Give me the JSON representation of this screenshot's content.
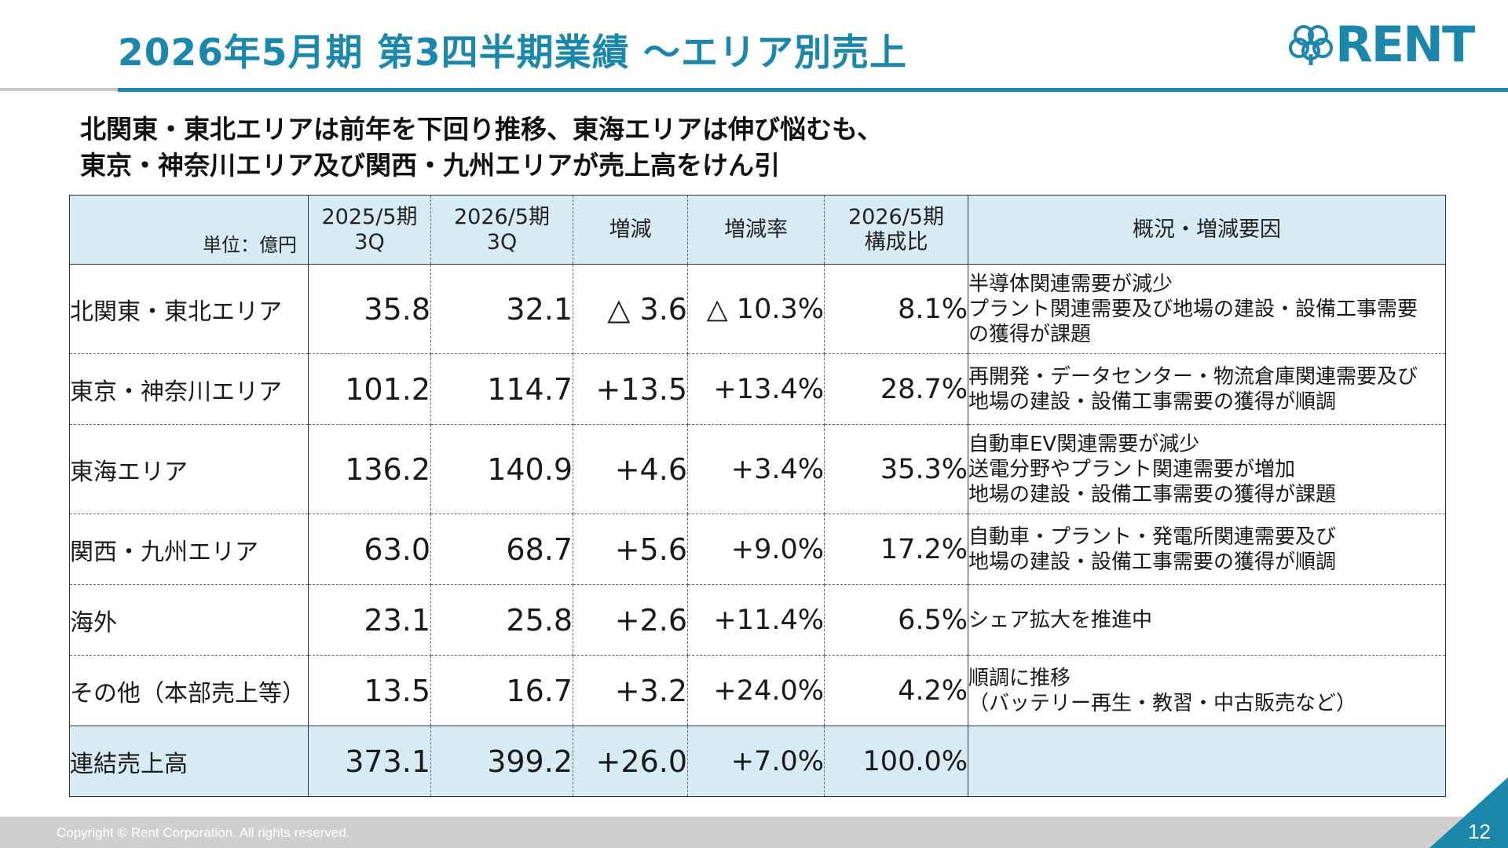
{
  "title": "2026年5月期 第3四半期業績 ～エリア別売上",
  "logo_text": "RENT",
  "headline": {
    "line1": "北関東・東北エリアは前年を下回り推移、東海エリアは伸び悩むも、",
    "line2": "東京・神奈川エリア及び関西・九州エリアが売上高をけん引"
  },
  "table": {
    "headers": {
      "unit": "単位：億円",
      "prev_1": "2025/5期",
      "prev_2": "3Q",
      "curr_1": "2026/5期",
      "curr_2": "3Q",
      "change": "増減",
      "change_rate": "増減率",
      "share_1": "2026/5期",
      "share_2": "構成比",
      "notes": "概況・増減要因"
    },
    "rows": [
      {
        "area": "北関東・東北エリア",
        "prev": "35.8",
        "curr": "32.1",
        "change": "△ 3.6",
        "rate": "△ 10.3%",
        "share": "8.1%",
        "notes": [
          "半導体関連需要が減少",
          "プラント関連需要及び地場の建設・設備工事需要",
          "の獲得が課題"
        ]
      },
      {
        "area": "東京・神奈川エリア",
        "prev": "101.2",
        "curr": "114.7",
        "change": "+13.5",
        "rate": "+13.4%",
        "share": "28.7%",
        "notes": [
          "再開発・データセンター・物流倉庫関連需要及び",
          "地場の建設・設備工事需要の獲得が順調"
        ]
      },
      {
        "area": "東海エリア",
        "prev": "136.2",
        "curr": "140.9",
        "change": "+4.6",
        "rate": "+3.4%",
        "share": "35.3%",
        "notes": [
          "自動車EV関連需要が減少",
          "送電分野やプラント関連需要が増加",
          "地場の建設・設備工事需要の獲得が課題"
        ]
      },
      {
        "area": "関西・九州エリア",
        "prev": "63.0",
        "curr": "68.7",
        "change": "+5.6",
        "rate": "+9.0%",
        "share": "17.2%",
        "notes": [
          "自動車・プラント・発電所関連需要及び",
          "地場の建設・設備工事需要の獲得が順調"
        ]
      },
      {
        "area": "海外",
        "prev": "23.1",
        "curr": "25.8",
        "change": "+2.6",
        "rate": "+11.4%",
        "share": "6.5%",
        "notes": [
          "シェア拡大を推進中"
        ]
      },
      {
        "area": "その他（本部売上等）",
        "prev": "13.5",
        "curr": "16.7",
        "change": "+3.2",
        "rate": "+24.0%",
        "share": "4.2%",
        "notes": [
          "順調に推移",
          "（バッテリー再生・教習・中古販売など）"
        ]
      }
    ],
    "total": {
      "area": "連結売上高",
      "prev": "373.1",
      "curr": "399.2",
      "change": "+26.0",
      "rate": "+7.0%",
      "share": "100.0%"
    }
  },
  "footer": {
    "copyright": "Copyright © Rent Corporation. All rights reserved.",
    "page": "12"
  },
  "colors": {
    "accent": "#1b87ab",
    "header_bg": "#d6ebf3",
    "footer_bg": "#cfcfcf"
  },
  "icons": [
    "clover-logo-icon"
  ]
}
